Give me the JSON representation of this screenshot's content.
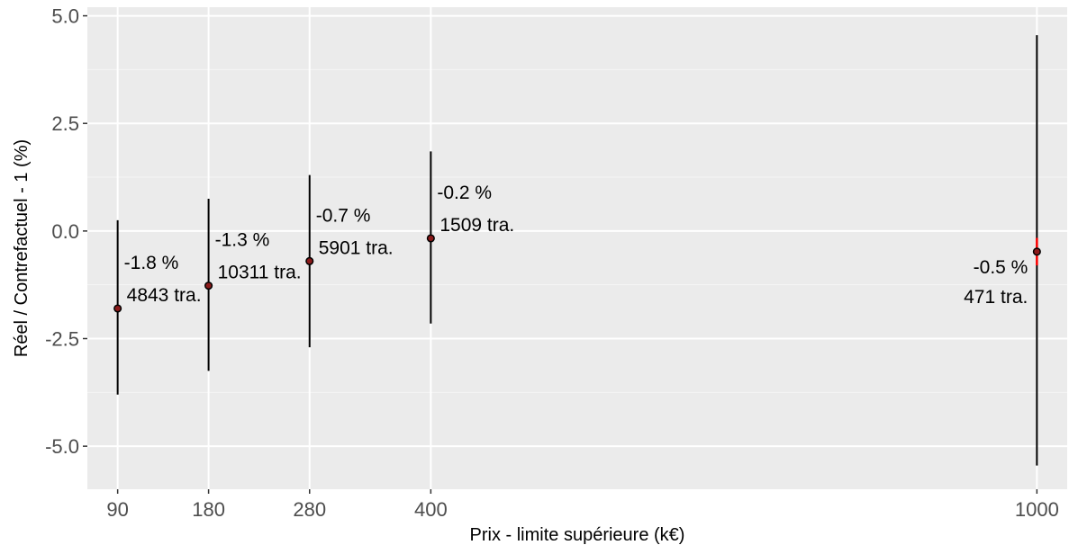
{
  "chart_data": {
    "type": "scatter",
    "title": "",
    "xlabel": "Prix - limite supérieure (k€)",
    "ylabel": "Réel / Contrefactuel - 1 (%)",
    "xlim": [
      60,
      1030
    ],
    "ylim": [
      -6.0,
      5.2
    ],
    "x_ticks": [
      90,
      180,
      280,
      400,
      1000
    ],
    "x_tick_labels": [
      "90",
      "180",
      "280",
      "400",
      "1000"
    ],
    "y_ticks": [
      5.0,
      2.5,
      0.0,
      -2.5,
      -5.0
    ],
    "y_tick_labels": [
      "5.0",
      "2.5",
      "0.0",
      "-2.5",
      "-5.0"
    ],
    "grid": true,
    "legend": "none",
    "colors": {
      "panel": "#ebebeb",
      "grid": "#ffffff",
      "errorbar": "#000000",
      "point_fill": "#8b1a1a",
      "highlight": "#ff0000",
      "tick_text": "#4d4d4d"
    },
    "points": [
      {
        "x": 90,
        "y": -1.8,
        "ymin": -3.8,
        "ymax": 0.25,
        "pct_label": "-1.8 %",
        "count_label": "4843 tra."
      },
      {
        "x": 180,
        "y": -1.27,
        "ymin": -3.25,
        "ymax": 0.75,
        "pct_label": "-1.3 %",
        "count_label": "10311 tra."
      },
      {
        "x": 280,
        "y": -0.7,
        "ymin": -2.7,
        "ymax": 1.3,
        "pct_label": "-0.7 %",
        "count_label": "5901 tra."
      },
      {
        "x": 400,
        "y": -0.17,
        "ymin": -2.15,
        "ymax": 1.85,
        "pct_label": "-0.2 %",
        "count_label": "1509 tra."
      },
      {
        "x": 1000,
        "y": -0.48,
        "ymin": -5.45,
        "ymax": 4.55,
        "pct_label": "-0.5 %",
        "count_label": "471 tra."
      }
    ]
  }
}
